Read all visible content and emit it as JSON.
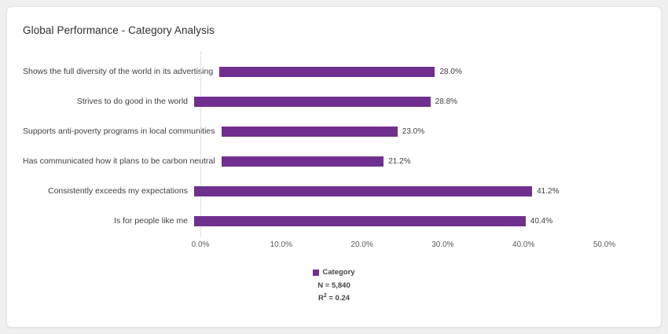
{
  "card": {
    "title": "Global Performance - Category Analysis"
  },
  "chart_data": {
    "type": "bar",
    "orientation": "horizontal",
    "title": "Global Performance - Category Analysis",
    "categories": [
      "Shows the full diversity of the world in its advertising",
      "Strives to do good in the world",
      "Supports anti-poverty programs in local communities",
      "Has communicated how it plans to be carbon neutral",
      "Consistently exceeds my expectations",
      "Is for people like me"
    ],
    "values": [
      28.0,
      28.8,
      23.0,
      21.2,
      41.2,
      40.4
    ],
    "value_labels": [
      "28.0%",
      "28.8%",
      "23.0%",
      "21.2%",
      "41.2%",
      "40.4%"
    ],
    "xlim": [
      0,
      50
    ],
    "x_ticks": [
      "0.0%",
      "10.0%",
      "20.0%",
      "30.0%",
      "40.0%",
      "50.0%"
    ],
    "bar_color": "#702f8f",
    "grid": "zero-line-dotted-only",
    "legend_position": "bottom-center",
    "legend": {
      "label": "Category",
      "n_label": "N = 5,840",
      "r2_prefix": "R",
      "r2_sup": "2",
      "r2_rest": " = 0.24"
    }
  }
}
